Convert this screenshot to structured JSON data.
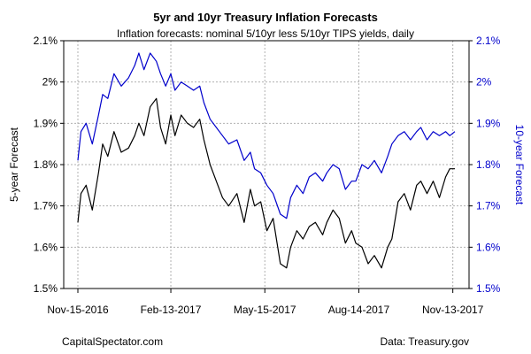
{
  "chart_data": {
    "type": "line",
    "title": "5yr and 10yr Treasury Inflation Forecasts",
    "subtitle": "Inflation forecasts: nominal 5/10yr less 5/10yr TIPS yields, daily",
    "ylabel_left": "5-year Forecast",
    "ylabel_right": "10-year Forecast",
    "ylim": [
      1.5,
      2.1
    ],
    "y_ticks": [
      "1.5%",
      "1.6%",
      "1.7%",
      "1.8%",
      "1.9%",
      "2%",
      "2.1%"
    ],
    "y_tick_values": [
      1.5,
      1.6,
      1.7,
      1.8,
      1.9,
      2.0,
      2.1
    ],
    "x_ticks": [
      "Nov-15-2016",
      "Feb-13-2017",
      "May-15-2017",
      "Aug-14-2017",
      "Nov-13-2017"
    ],
    "x_tick_dates": [
      "2016-11-15",
      "2017-02-13",
      "2017-05-15",
      "2017-08-14",
      "2017-11-13"
    ],
    "x_range": [
      "2016-11-15",
      "2017-11-15"
    ],
    "grid": true,
    "colors": {
      "five_year": "#000000",
      "ten_year": "#0000cc",
      "right_axis": "#0000cc"
    },
    "series": [
      {
        "axis": "left",
        "color": "#000000",
        "x": [
          "2016-11-15",
          "2016-11-18",
          "2016-11-23",
          "2016-11-29",
          "2016-12-05",
          "2016-12-09",
          "2016-12-14",
          "2016-12-20",
          "2016-12-27",
          "2017-01-03",
          "2017-01-09",
          "2017-01-13",
          "2017-01-18",
          "2017-01-24",
          "2017-01-30",
          "2017-02-03",
          "2017-02-08",
          "2017-02-13",
          "2017-02-17",
          "2017-02-23",
          "2017-03-01",
          "2017-03-07",
          "2017-03-13",
          "2017-03-17",
          "2017-03-23",
          "2017-03-29",
          "2017-04-04",
          "2017-04-10",
          "2017-04-18",
          "2017-04-25",
          "2017-05-01",
          "2017-05-05",
          "2017-05-11",
          "2017-05-17",
          "2017-05-23",
          "2017-05-30",
          "2017-06-05",
          "2017-06-09",
          "2017-06-15",
          "2017-06-21",
          "2017-06-27",
          "2017-07-03",
          "2017-07-10",
          "2017-07-14",
          "2017-07-20",
          "2017-07-26",
          "2017-08-01",
          "2017-08-07",
          "2017-08-11",
          "2017-08-17",
          "2017-08-23",
          "2017-08-29",
          "2017-09-05",
          "2017-09-11",
          "2017-09-15",
          "2017-09-21",
          "2017-09-27",
          "2017-10-03",
          "2017-10-09",
          "2017-10-13",
          "2017-10-19",
          "2017-10-25",
          "2017-10-31",
          "2017-11-06",
          "2017-11-10",
          "2017-11-15"
        ],
        "values": [
          1.66,
          1.73,
          1.75,
          1.69,
          1.78,
          1.85,
          1.82,
          1.88,
          1.83,
          1.84,
          1.87,
          1.9,
          1.87,
          1.94,
          1.96,
          1.89,
          1.85,
          1.92,
          1.87,
          1.92,
          1.9,
          1.89,
          1.91,
          1.86,
          1.8,
          1.76,
          1.72,
          1.7,
          1.73,
          1.66,
          1.74,
          1.7,
          1.71,
          1.64,
          1.67,
          1.56,
          1.55,
          1.6,
          1.64,
          1.62,
          1.65,
          1.66,
          1.63,
          1.66,
          1.69,
          1.67,
          1.61,
          1.64,
          1.61,
          1.6,
          1.56,
          1.58,
          1.55,
          1.6,
          1.62,
          1.71,
          1.73,
          1.69,
          1.75,
          1.76,
          1.73,
          1.76,
          1.72,
          1.77,
          1.79,
          1.79
        ]
      },
      {
        "axis": "right",
        "color": "#0000cc",
        "x": [
          "2016-11-15",
          "2016-11-18",
          "2016-11-23",
          "2016-11-29",
          "2016-12-05",
          "2016-12-09",
          "2016-12-14",
          "2016-12-20",
          "2016-12-27",
          "2017-01-03",
          "2017-01-09",
          "2017-01-13",
          "2017-01-18",
          "2017-01-24",
          "2017-01-30",
          "2017-02-03",
          "2017-02-08",
          "2017-02-13",
          "2017-02-17",
          "2017-02-23",
          "2017-03-01",
          "2017-03-07",
          "2017-03-13",
          "2017-03-17",
          "2017-03-23",
          "2017-03-29",
          "2017-04-04",
          "2017-04-10",
          "2017-04-18",
          "2017-04-25",
          "2017-05-01",
          "2017-05-05",
          "2017-05-11",
          "2017-05-17",
          "2017-05-23",
          "2017-05-30",
          "2017-06-05",
          "2017-06-09",
          "2017-06-15",
          "2017-06-21",
          "2017-06-27",
          "2017-07-03",
          "2017-07-10",
          "2017-07-14",
          "2017-07-20",
          "2017-07-26",
          "2017-08-01",
          "2017-08-07",
          "2017-08-11",
          "2017-08-17",
          "2017-08-23",
          "2017-08-29",
          "2017-09-05",
          "2017-09-11",
          "2017-09-15",
          "2017-09-21",
          "2017-09-27",
          "2017-10-03",
          "2017-10-09",
          "2017-10-13",
          "2017-10-19",
          "2017-10-25",
          "2017-10-31",
          "2017-11-06",
          "2017-11-10",
          "2017-11-15"
        ],
        "values": [
          1.81,
          1.88,
          1.9,
          1.85,
          1.92,
          1.97,
          1.96,
          2.02,
          1.99,
          2.01,
          2.04,
          2.07,
          2.03,
          2.07,
          2.05,
          2.02,
          1.99,
          2.02,
          1.98,
          2.0,
          1.99,
          1.98,
          1.99,
          1.95,
          1.91,
          1.89,
          1.87,
          1.85,
          1.86,
          1.81,
          1.83,
          1.79,
          1.78,
          1.75,
          1.73,
          1.68,
          1.67,
          1.72,
          1.75,
          1.73,
          1.77,
          1.78,
          1.76,
          1.78,
          1.8,
          1.79,
          1.74,
          1.76,
          1.76,
          1.8,
          1.79,
          1.81,
          1.78,
          1.82,
          1.85,
          1.87,
          1.88,
          1.86,
          1.88,
          1.89,
          1.86,
          1.88,
          1.87,
          1.88,
          1.87,
          1.88
        ]
      }
    ]
  },
  "footer": {
    "source_left": "CapitalSpectator.com",
    "source_right": "Data: Treasury.gov"
  }
}
